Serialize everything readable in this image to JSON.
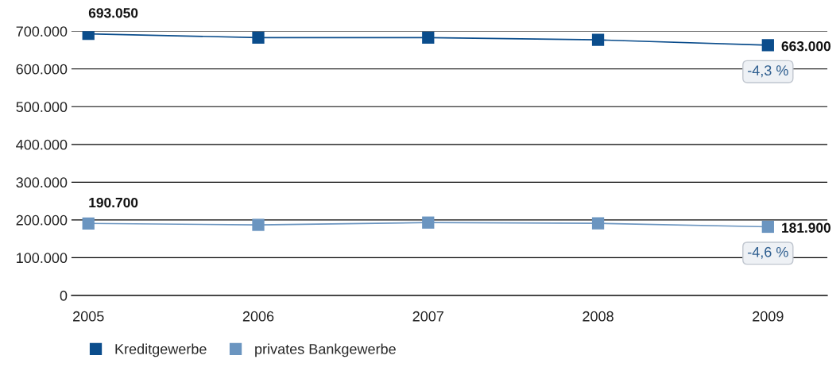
{
  "chart_data": {
    "type": "line",
    "categories": [
      "2005",
      "2006",
      "2007",
      "2008",
      "2009"
    ],
    "series": [
      {
        "name": "Kreditgewerbe",
        "color": "#0b4d8c",
        "values": [
          693050,
          683000,
          683000,
          677000,
          663000
        ],
        "value_labels": [
          "693.050",
          null,
          null,
          null,
          "663.000"
        ]
      },
      {
        "name": "privates Bankgewerbe",
        "color": "#6b95c0",
        "values": [
          190700,
          187000,
          193000,
          191000,
          181900
        ],
        "value_labels": [
          "190.700",
          null,
          null,
          null,
          "181.900"
        ]
      }
    ],
    "ylim": [
      0,
      700000
    ],
    "yticks": [
      {
        "value": 0,
        "label": "0"
      },
      {
        "value": 100000,
        "label": "100.000"
      },
      {
        "value": 200000,
        "label": "200.000"
      },
      {
        "value": 300000,
        "label": "300.000"
      },
      {
        "value": 400000,
        "label": "400.000"
      },
      {
        "value": 500000,
        "label": "500.000"
      },
      {
        "value": 600000,
        "label": "600.000"
      },
      {
        "value": 700000,
        "label": "700.000"
      }
    ],
    "annotations": [
      "-4,3 %",
      "-4,6 %"
    ],
    "grid": "y",
    "legend": "bottom left",
    "marker": "square",
    "line_style": "solid"
  }
}
